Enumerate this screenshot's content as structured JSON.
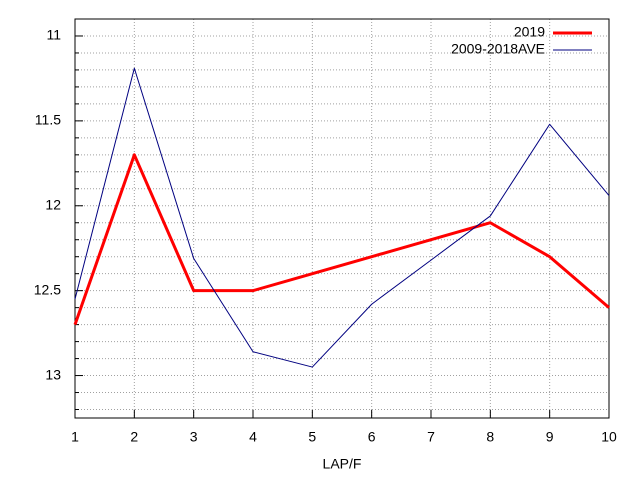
{
  "chart_data": {
    "type": "line",
    "x_label": "LAP/F",
    "x": [
      1,
      2,
      3,
      4,
      5,
      6,
      7,
      8,
      9,
      10
    ],
    "series": [
      {
        "name": "2019",
        "color": "#ff0000",
        "width": 3,
        "values": [
          12.7,
          11.7,
          12.5,
          12.5,
          12.4,
          12.3,
          12.2,
          12.1,
          12.3,
          12.6
        ]
      },
      {
        "name": "2009-2018AVE",
        "color": "#000080",
        "width": 1,
        "values": [
          12.55,
          11.19,
          12.31,
          12.86,
          12.95,
          12.58,
          12.32,
          12.06,
          11.52,
          11.94
        ]
      }
    ],
    "xlim": [
      1,
      10
    ],
    "xticks": [
      1,
      2,
      3,
      4,
      5,
      6,
      7,
      8,
      9,
      10
    ],
    "ylim": [
      10.9,
      13.25
    ],
    "y_reversed": true,
    "yticks": [
      11,
      11.5,
      12,
      12.5,
      13
    ],
    "minor_yticks": [
      10.9,
      11.1,
      11.2,
      11.3,
      11.4,
      11.6,
      11.7,
      11.8,
      11.9,
      12.1,
      12.2,
      12.3,
      12.4,
      12.6,
      12.7,
      12.8,
      12.9,
      13.1,
      13.2
    ],
    "grid": true,
    "legend": "top-right"
  }
}
